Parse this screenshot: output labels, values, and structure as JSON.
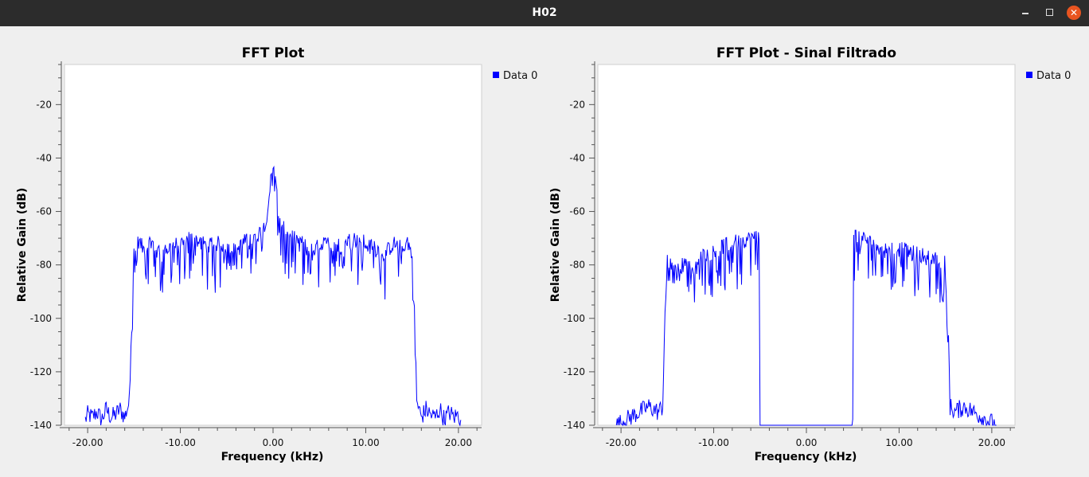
{
  "window": {
    "title": "H02",
    "minimize_icon": "minimize-icon",
    "maximize_icon": "maximize-icon",
    "close_icon": "close-icon",
    "close_color": "#e95420"
  },
  "chart_data": [
    {
      "type": "line",
      "title": "FFT Plot",
      "xlabel": "Frequency (kHz)",
      "ylabel": "Relative Gain (dB)",
      "xlim": [
        -22.5,
        22.5
      ],
      "ylim": [
        -140,
        -5
      ],
      "xticks": [
        -20,
        -10,
        0,
        10,
        20
      ],
      "xtick_labels": [
        "-20.00",
        "-10.00",
        "0.00",
        "10.00",
        "20.00"
      ],
      "yticks": [
        -140,
        -120,
        -100,
        -80,
        -60,
        -40,
        -20
      ],
      "ytick_labels": [
        "-140",
        "-120",
        "-100",
        "-80",
        "-60",
        "-40",
        "-20"
      ],
      "grid": false,
      "legend_position": "top-right",
      "series": [
        {
          "name": "Data 0",
          "color": "#0000ff",
          "x": [
            -20.25,
            -20,
            -19.5,
            -19,
            -18.5,
            -18,
            -17.5,
            -17,
            -16.5,
            -16,
            -15.5,
            -15.25,
            -15,
            -14.5,
            -14,
            -13,
            -12,
            -11,
            -10,
            -9,
            -8,
            -7,
            -6,
            -5,
            -4,
            -3,
            -2,
            -1,
            -0.5,
            -0.25,
            0,
            0.25,
            0.5,
            1,
            2,
            3,
            4,
            5,
            6,
            7,
            8,
            9,
            10,
            11,
            12,
            13,
            14,
            14.5,
            15,
            15.25,
            15.5,
            16,
            16.5,
            17,
            17.5,
            18,
            18.5,
            19,
            19.5,
            20,
            20.25
          ],
          "y": [
            -138,
            -136,
            -137,
            -135,
            -138,
            -134,
            -137,
            -136,
            -134,
            -137,
            -131,
            -100,
            -78,
            -73,
            -76,
            -74,
            -78,
            -75,
            -74,
            -72,
            -73,
            -75,
            -74,
            -75,
            -77,
            -73,
            -72,
            -68,
            -60,
            -48,
            -44,
            -48,
            -60,
            -68,
            -72,
            -73,
            -77,
            -75,
            -74,
            -75,
            -73,
            -72,
            -74,
            -75,
            -78,
            -74,
            -76,
            -73,
            -78,
            -100,
            -131,
            -137,
            -134,
            -136,
            -137,
            -134,
            -138,
            -135,
            -137,
            -136,
            -138
          ]
        }
      ]
    },
    {
      "type": "line",
      "title": "FFT Plot - Sinal Filtrado",
      "xlabel": "Frequency (kHz)",
      "ylabel": "Relative Gain (dB)",
      "xlim": [
        -22.5,
        22.5
      ],
      "ylim": [
        -140,
        -5
      ],
      "xticks": [
        -20,
        -10,
        0,
        10,
        20
      ],
      "xtick_labels": [
        "-20.00",
        "-10.00",
        "0.00",
        "10.00",
        "20.00"
      ],
      "yticks": [
        -140,
        -120,
        -100,
        -80,
        -60,
        -40,
        -20
      ],
      "ytick_labels": [
        "-140",
        "-120",
        "-100",
        "-80",
        "-60",
        "-40",
        "-20"
      ],
      "grid": false,
      "legend_position": "top-right",
      "series": [
        {
          "name": "Data 0",
          "color": "#0000ff",
          "x": [
            -20.5,
            -20,
            -19.5,
            -19,
            -18.5,
            -18,
            -17.5,
            -17,
            -16.5,
            -16,
            -15.5,
            -15.25,
            -15,
            -14.5,
            -14,
            -13,
            -12,
            -11,
            -10,
            -9,
            -8,
            -7,
            -6,
            -5.5,
            -5.1,
            -5.0,
            5.0,
            5.1,
            5.5,
            6,
            7,
            8,
            9,
            10,
            11,
            12,
            13,
            14,
            14.5,
            15,
            15.25,
            15.5,
            16,
            16.5,
            17,
            17.5,
            18,
            18.5,
            19,
            19.5,
            20,
            20.5
          ],
          "y": [
            -140,
            -139,
            -138,
            -137,
            -136,
            -135,
            -134,
            -133,
            -134,
            -135,
            -133,
            -100,
            -80,
            -83,
            -85,
            -80,
            -82,
            -78,
            -77,
            -75,
            -74,
            -73,
            -72,
            -71,
            -70,
            -140,
            -140,
            -70,
            -71,
            -72,
            -73,
            -74,
            -75,
            -76,
            -77,
            -78,
            -79,
            -80,
            -82,
            -80,
            -100,
            -133,
            -135,
            -134,
            -133,
            -134,
            -135,
            -136,
            -137,
            -138,
            -139,
            -140
          ]
        }
      ]
    }
  ]
}
